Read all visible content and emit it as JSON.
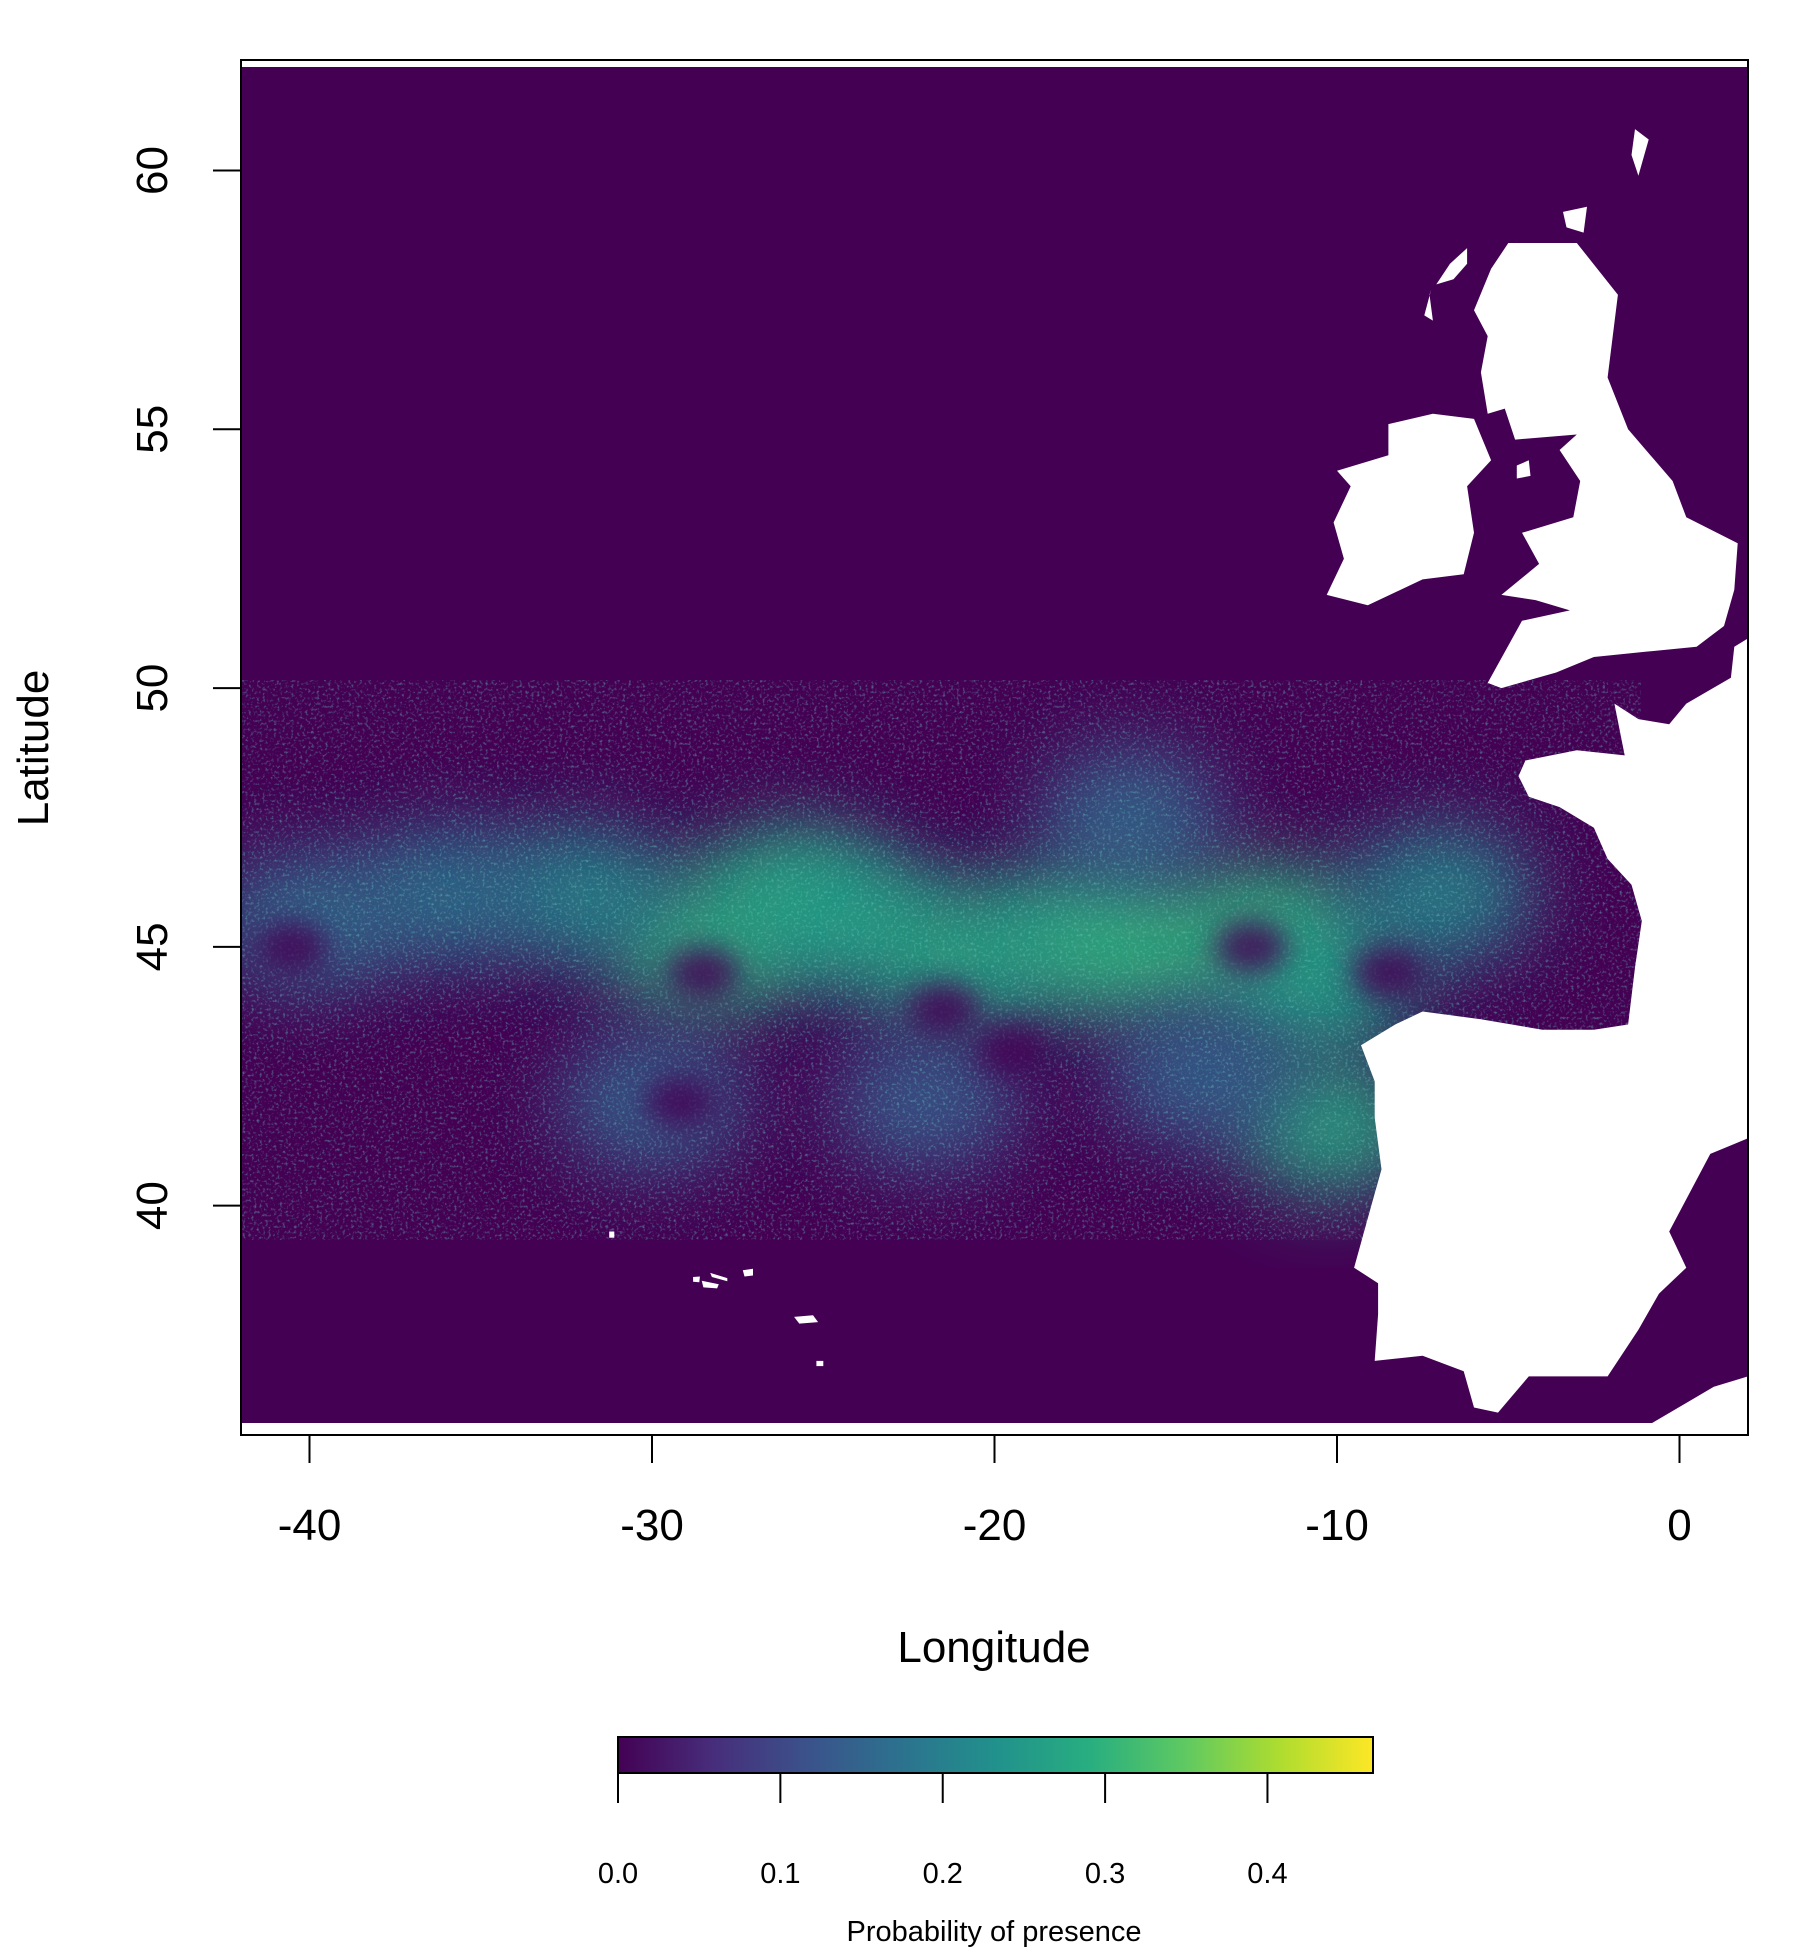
{
  "chart_data": {
    "type": "heatmap",
    "title": "",
    "xlabel": "Longitude",
    "ylabel": "Latitude",
    "xlim": [
      -42,
      2
    ],
    "ylim": [
      35.8,
      62
    ],
    "x_ticks": [
      {
        "value": -40,
        "label": "-40"
      },
      {
        "value": -30,
        "label": "-30"
      },
      {
        "value": -20,
        "label": "-20"
      },
      {
        "value": -10,
        "label": "-10"
      },
      {
        "value": 0,
        "label": "0"
      }
    ],
    "y_ticks": [
      {
        "value": 40,
        "label": "40"
      },
      {
        "value": 45,
        "label": "45"
      },
      {
        "value": 50,
        "label": "50"
      },
      {
        "value": 55,
        "label": "55"
      },
      {
        "value": 60,
        "label": "60"
      }
    ],
    "colorbar": {
      "label": "Probability of presence",
      "range": [
        0,
        0.465
      ],
      "placement": "bottom",
      "colormap": [
        "#440154",
        "#472d7b",
        "#3b528b",
        "#2c728e",
        "#21918c",
        "#28ae80",
        "#5ec962",
        "#addc30",
        "#fde725"
      ],
      "ticks": [
        {
          "value": 0.0,
          "label": "0.0"
        },
        {
          "value": 0.1,
          "label": "0.1"
        },
        {
          "value": 0.2,
          "label": "0.2"
        },
        {
          "value": 0.3,
          "label": "0.3"
        },
        {
          "value": 0.4,
          "label": "0.4"
        }
      ]
    },
    "land_color": "#ffffff",
    "background_value_color": "#440154",
    "land": [
      {
        "name": "Great Britain",
        "outline": [
          [
            -5.0,
            58.6
          ],
          [
            -3.0,
            58.6
          ],
          [
            -1.8,
            57.6
          ],
          [
            -2.1,
            56.0
          ],
          [
            -1.5,
            55.0
          ],
          [
            -0.2,
            54.0
          ],
          [
            0.2,
            53.3
          ],
          [
            1.7,
            52.8
          ],
          [
            1.6,
            51.9
          ],
          [
            1.3,
            51.2
          ],
          [
            0.5,
            50.8
          ],
          [
            -1.0,
            50.7
          ],
          [
            -2.5,
            50.6
          ],
          [
            -3.6,
            50.3
          ],
          [
            -5.2,
            50.0
          ],
          [
            -5.6,
            50.1
          ],
          [
            -4.6,
            51.3
          ],
          [
            -3.2,
            51.5
          ],
          [
            -4.2,
            51.7
          ],
          [
            -5.2,
            51.8
          ],
          [
            -4.1,
            52.4
          ],
          [
            -4.6,
            53.0
          ],
          [
            -3.1,
            53.3
          ],
          [
            -2.9,
            54.0
          ],
          [
            -3.5,
            54.6
          ],
          [
            -3.0,
            54.9
          ],
          [
            -4.8,
            54.8
          ],
          [
            -5.1,
            55.4
          ],
          [
            -5.6,
            55.3
          ],
          [
            -5.8,
            56.1
          ],
          [
            -5.6,
            56.8
          ],
          [
            -6.0,
            57.3
          ],
          [
            -5.5,
            58.1
          ]
        ]
      },
      {
        "name": "Ireland",
        "outline": [
          [
            -7.2,
            55.3
          ],
          [
            -6.0,
            55.2
          ],
          [
            -5.5,
            54.4
          ],
          [
            -6.2,
            53.9
          ],
          [
            -6.0,
            53.0
          ],
          [
            -6.3,
            52.2
          ],
          [
            -7.5,
            52.1
          ],
          [
            -9.1,
            51.6
          ],
          [
            -10.3,
            51.8
          ],
          [
            -9.8,
            52.5
          ],
          [
            -10.1,
            53.2
          ],
          [
            -9.6,
            53.9
          ],
          [
            -10.0,
            54.2
          ],
          [
            -8.5,
            54.5
          ],
          [
            -8.5,
            55.1
          ]
        ]
      },
      {
        "name": "Isle of Man",
        "outline": [
          [
            -4.75,
            54.05
          ],
          [
            -4.35,
            54.1
          ],
          [
            -4.4,
            54.4
          ],
          [
            -4.75,
            54.3
          ]
        ]
      },
      {
        "name": "Lewis and Harris",
        "outline": [
          [
            -6.2,
            58.5
          ],
          [
            -6.7,
            58.2
          ],
          [
            -7.1,
            57.8
          ],
          [
            -6.6,
            57.9
          ],
          [
            -6.2,
            58.2
          ]
        ]
      },
      {
        "name": "Uists",
        "outline": [
          [
            -7.25,
            57.7
          ],
          [
            -7.45,
            57.2
          ],
          [
            -7.2,
            57.1
          ],
          [
            -7.3,
            57.6
          ]
        ]
      },
      {
        "name": "Orkney",
        "outline": [
          [
            -3.4,
            59.2
          ],
          [
            -2.7,
            59.3
          ],
          [
            -2.8,
            58.8
          ],
          [
            -3.3,
            58.9
          ]
        ]
      },
      {
        "name": "Shetland",
        "outline": [
          [
            -1.3,
            60.8
          ],
          [
            -0.9,
            60.6
          ],
          [
            -1.2,
            59.9
          ],
          [
            -1.4,
            60.3
          ]
        ]
      },
      {
        "name": "France and Iberia",
        "outline": [
          [
            2.1,
            51.0
          ],
          [
            1.6,
            50.8
          ],
          [
            1.5,
            50.2
          ],
          [
            0.2,
            49.7
          ],
          [
            -0.3,
            49.3
          ],
          [
            -1.2,
            49.4
          ],
          [
            -1.9,
            49.7
          ],
          [
            -1.6,
            48.7
          ],
          [
            -3.0,
            48.8
          ],
          [
            -4.5,
            48.6
          ],
          [
            -4.7,
            48.3
          ],
          [
            -4.4,
            47.9
          ],
          [
            -3.5,
            47.7
          ],
          [
            -2.5,
            47.3
          ],
          [
            -2.1,
            46.7
          ],
          [
            -1.4,
            46.2
          ],
          [
            -1.1,
            45.5
          ],
          [
            -1.3,
            44.6
          ],
          [
            -1.5,
            43.5
          ],
          [
            -2.5,
            43.4
          ],
          [
            -4.0,
            43.4
          ],
          [
            -5.8,
            43.6
          ],
          [
            -7.5,
            43.75
          ],
          [
            -8.3,
            43.5
          ],
          [
            -9.3,
            43.1
          ],
          [
            -8.9,
            42.4
          ],
          [
            -8.9,
            41.7
          ],
          [
            -8.7,
            40.7
          ],
          [
            -9.0,
            40.0
          ],
          [
            -9.5,
            38.8
          ],
          [
            -8.8,
            38.5
          ],
          [
            -8.8,
            37.9
          ],
          [
            -8.9,
            37.0
          ],
          [
            -7.5,
            37.1
          ],
          [
            -6.3,
            36.8
          ],
          [
            -6.0,
            36.1
          ],
          [
            -5.3,
            36.0
          ],
          [
            -4.4,
            36.7
          ],
          [
            -2.1,
            36.7
          ],
          [
            -1.2,
            37.6
          ],
          [
            -0.6,
            38.3
          ],
          [
            0.2,
            38.8
          ],
          [
            -0.3,
            39.5
          ],
          [
            0.9,
            41.0
          ],
          [
            2.0,
            41.3
          ],
          [
            2.0,
            51.0
          ]
        ]
      },
      {
        "name": "North Africa",
        "outline": [
          [
            -0.8,
            35.8
          ],
          [
            1.0,
            36.5
          ],
          [
            2.0,
            36.7
          ],
          [
            2.0,
            35.8
          ]
        ]
      },
      {
        "name": "Sao Miguel",
        "outline": [
          [
            -25.85,
            37.85
          ],
          [
            -25.3,
            37.88
          ],
          [
            -25.15,
            37.75
          ],
          [
            -25.7,
            37.72
          ]
        ]
      },
      {
        "name": "Terceira",
        "outline": [
          [
            -27.35,
            38.75
          ],
          [
            -27.05,
            38.78
          ],
          [
            -27.05,
            38.65
          ],
          [
            -27.3,
            38.63
          ]
        ]
      },
      {
        "name": "Sao Jorge",
        "outline": [
          [
            -28.3,
            38.7
          ],
          [
            -27.8,
            38.6
          ],
          [
            -27.8,
            38.54
          ],
          [
            -28.25,
            38.62
          ]
        ]
      },
      {
        "name": "Pico",
        "outline": [
          [
            -28.55,
            38.55
          ],
          [
            -28.05,
            38.48
          ],
          [
            -28.1,
            38.4
          ],
          [
            -28.5,
            38.42
          ]
        ]
      },
      {
        "name": "Faial",
        "outline": [
          [
            -28.8,
            38.62
          ],
          [
            -28.6,
            38.63
          ],
          [
            -28.62,
            38.52
          ],
          [
            -28.8,
            38.53
          ]
        ]
      },
      {
        "name": "Flores",
        "outline": [
          [
            -31.25,
            39.5
          ],
          [
            -31.1,
            39.5
          ],
          [
            -31.1,
            39.38
          ],
          [
            -31.25,
            39.38
          ]
        ]
      },
      {
        "name": "Santa Maria",
        "outline": [
          [
            -25.2,
            37.0
          ],
          [
            -25.0,
            37.0
          ],
          [
            -25.0,
            36.9
          ],
          [
            -25.2,
            36.9
          ]
        ]
      }
    ],
    "hotspots": [
      {
        "lon": -28.5,
        "lat": 45.0,
        "value": 0.3
      },
      {
        "lon": -26.0,
        "lat": 46.0,
        "value": 0.28
      },
      {
        "lon": -24.0,
        "lat": 45.5,
        "value": 0.26
      },
      {
        "lon": -21.0,
        "lat": 44.8,
        "value": 0.28
      },
      {
        "lon": -18.0,
        "lat": 45.2,
        "value": 0.27
      },
      {
        "lon": -15.5,
        "lat": 45.0,
        "value": 0.3
      },
      {
        "lon": -12.0,
        "lat": 45.3,
        "value": 0.3
      },
      {
        "lon": -10.5,
        "lat": 44.2,
        "value": 0.26
      },
      {
        "lon": -10.2,
        "lat": 41.5,
        "value": 0.28
      },
      {
        "lon": -32.0,
        "lat": 46.0,
        "value": 0.22
      },
      {
        "lon": -36.0,
        "lat": 46.0,
        "value": 0.18
      },
      {
        "lon": -40.0,
        "lat": 45.5,
        "value": 0.17
      },
      {
        "lon": -7.0,
        "lat": 46.0,
        "value": 0.22
      },
      {
        "lon": -30.0,
        "lat": 42.0,
        "value": 0.15
      },
      {
        "lon": -22.0,
        "lat": 42.0,
        "value": 0.14
      },
      {
        "lon": -14.0,
        "lat": 42.5,
        "value": 0.15
      },
      {
        "lon": -16.0,
        "lat": 47.5,
        "value": 0.16
      }
    ],
    "low_patches": [
      {
        "lon": -28.5,
        "lat": 44.5
      },
      {
        "lon": -29.2,
        "lat": 42.0
      },
      {
        "lon": -21.5,
        "lat": 43.8
      },
      {
        "lon": -19.5,
        "lat": 43.0
      },
      {
        "lon": -12.5,
        "lat": 45.0
      },
      {
        "lon": -8.5,
        "lat": 44.5
      },
      {
        "lon": -40.5,
        "lat": 45.0
      }
    ]
  }
}
